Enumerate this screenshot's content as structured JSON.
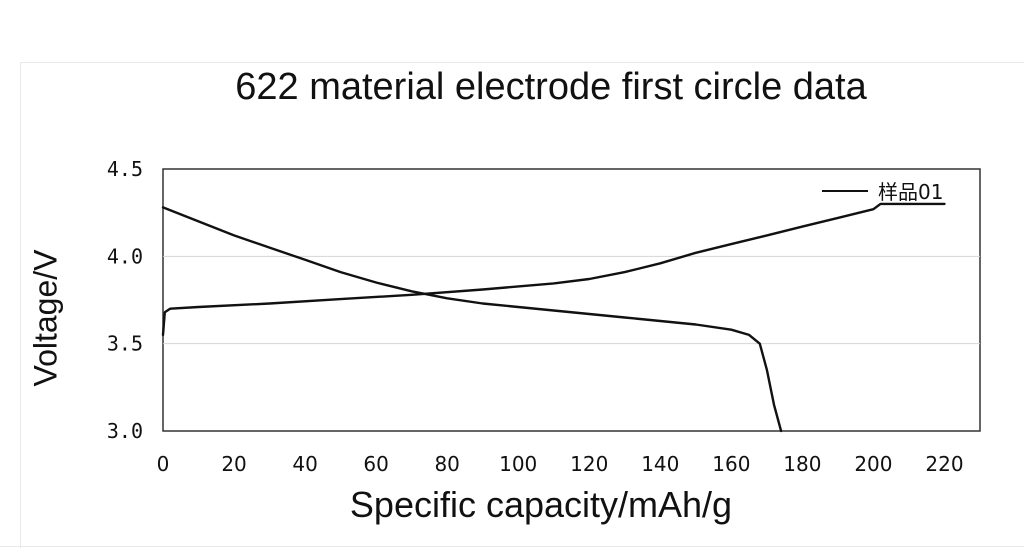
{
  "chart_data": {
    "type": "line",
    "title": "622 material electrode first circle data",
    "xlabel": "Specific capacity/mAh/g",
    "ylabel": "Voltage/V",
    "xlim": [
      0,
      230
    ],
    "ylim": [
      3.0,
      4.5
    ],
    "x_ticks": [
      0,
      20,
      40,
      60,
      80,
      100,
      120,
      140,
      160,
      180,
      200,
      220
    ],
    "y_ticks": [
      "3.0",
      "3.5",
      "4.0",
      "4.5"
    ],
    "y_tick_values": [
      3.0,
      3.5,
      4.0,
      4.5
    ],
    "grid": "horizontal",
    "legend": {
      "position": "top-right",
      "entries": [
        "样品01"
      ]
    },
    "line_color": "#111111",
    "series": [
      {
        "name": "样品01",
        "segment": "charge",
        "x": [
          0,
          0.5,
          2,
          10,
          30,
          50,
          70,
          90,
          110,
          120,
          130,
          140,
          150,
          160,
          170,
          180,
          190,
          200,
          202,
          210,
          220
        ],
        "y": [
          3.55,
          3.68,
          3.7,
          3.71,
          3.73,
          3.755,
          3.78,
          3.81,
          3.845,
          3.87,
          3.91,
          3.96,
          4.02,
          4.07,
          4.12,
          4.17,
          4.22,
          4.27,
          4.3,
          4.3,
          4.3
        ]
      },
      {
        "name": "样品01",
        "segment": "discharge",
        "x": [
          0,
          10,
          20,
          30,
          40,
          50,
          60,
          70,
          80,
          90,
          100,
          110,
          120,
          130,
          140,
          150,
          160,
          165,
          168,
          170,
          172,
          174
        ],
        "y": [
          4.28,
          4.2,
          4.12,
          4.05,
          3.98,
          3.91,
          3.85,
          3.8,
          3.76,
          3.73,
          3.71,
          3.69,
          3.67,
          3.65,
          3.63,
          3.61,
          3.58,
          3.55,
          3.5,
          3.35,
          3.15,
          3.0
        ]
      }
    ]
  }
}
